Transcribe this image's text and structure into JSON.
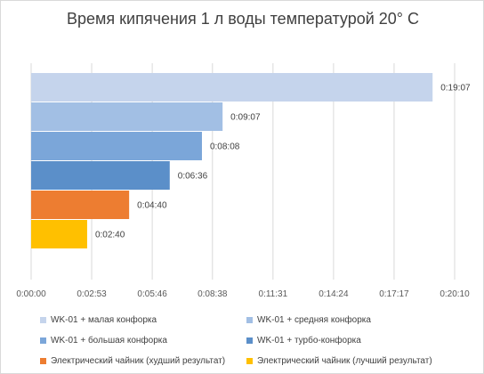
{
  "chart_data": {
    "type": "bar",
    "orientation": "horizontal",
    "title": "Время кипячения 1 л воды температурой 20° С",
    "xlabel": "",
    "ylabel": "",
    "x_unit": "h:mm:ss",
    "xlim_seconds": [
      0,
      1210
    ],
    "x_tick_labels": [
      "0:00:00",
      "0:02:53",
      "0:05:46",
      "0:08:38",
      "0:11:31",
      "0:14:24",
      "0:17:17",
      "0:20:10"
    ],
    "x_ticks_seconds": [
      0,
      173,
      346,
      518,
      691,
      864,
      1037,
      1210
    ],
    "grid": "vertical",
    "legend_position": "bottom",
    "series": [
      {
        "name": "WK-01 + малая конфорка",
        "value_seconds": 1147,
        "label": "0:19:07",
        "color": "#c5d4ec"
      },
      {
        "name": "WK-01 + средняя конфорка",
        "value_seconds": 547,
        "label": "0:09:07",
        "color": "#a2bfe4"
      },
      {
        "name": "WK-01 + большая конфорка",
        "value_seconds": 488,
        "label": "0:08:08",
        "color": "#7ba6d9"
      },
      {
        "name": "WK-01 + турбо-конфорка",
        "value_seconds": 396,
        "label": "0:06:36",
        "color": "#5b8fc9"
      },
      {
        "name": "Электрический чайник (худший результат)",
        "value_seconds": 280,
        "label": "0:04:40",
        "color": "#ed7d31"
      },
      {
        "name": "Электрический чайник (лучший результат)",
        "value_seconds": 160,
        "label": "0:02:40",
        "color": "#ffc000"
      }
    ]
  }
}
